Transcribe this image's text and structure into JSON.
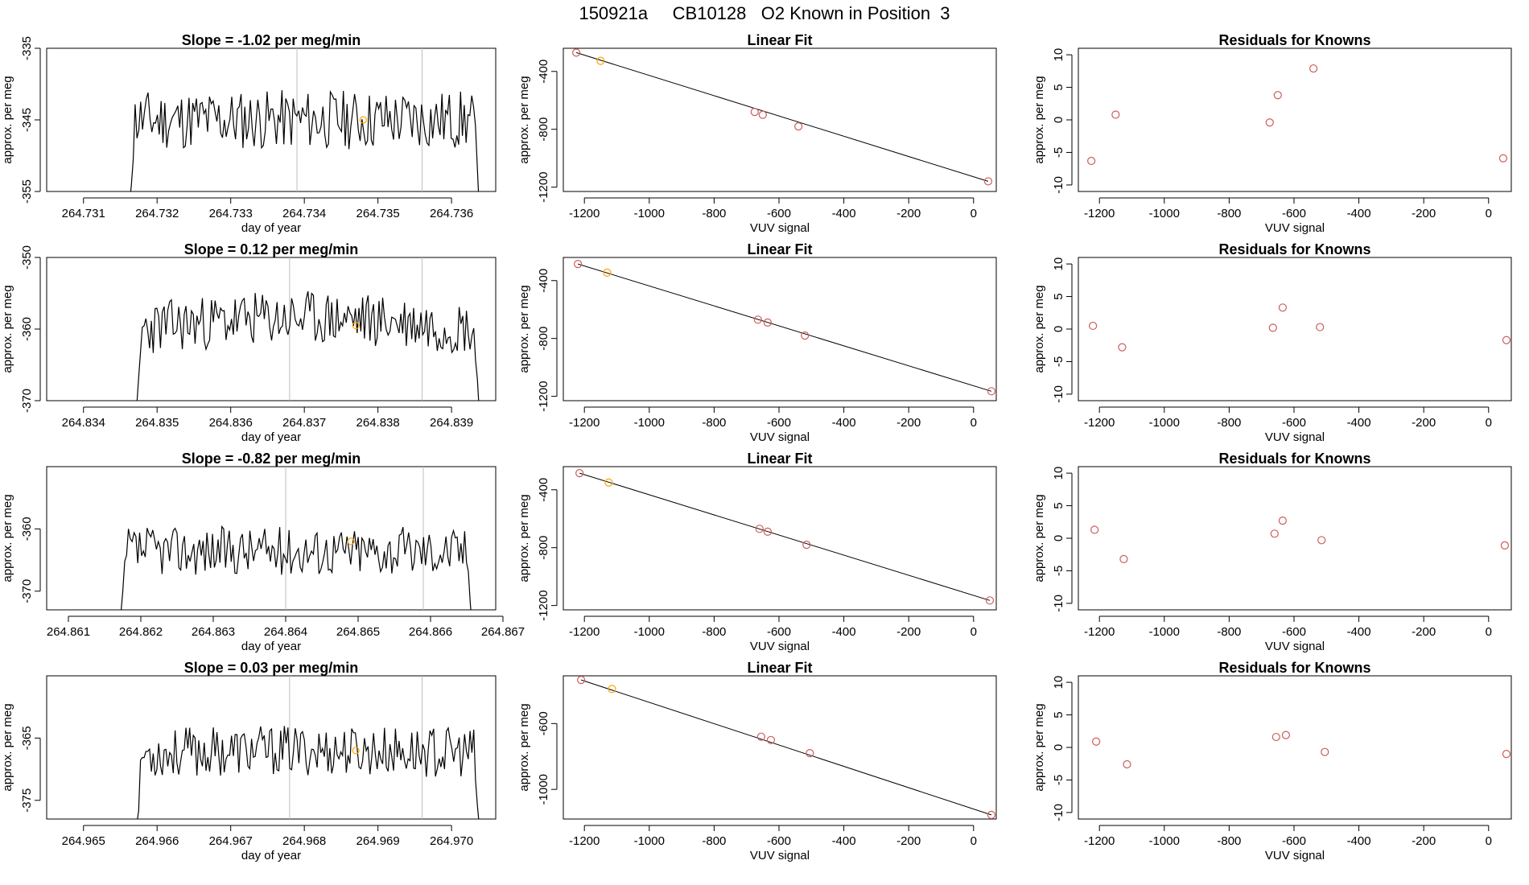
{
  "title": "150921a     CB10128   O2 Known in Position  3",
  "colors": {
    "line": "#000000",
    "point": "#cd5c5c",
    "highlight": "#ffa500",
    "vline": "#bebebe"
  },
  "chart_data": [
    {
      "type": "line",
      "row": 0,
      "title": "Slope =  -1.02  per meg/min",
      "xlabel": "day of year",
      "ylabel": "approx. per meg",
      "xlim": [
        264.7305,
        264.7366
      ],
      "ylim": [
        -355,
        -335
      ],
      "xticks": [
        264.731,
        264.732,
        264.733,
        264.734,
        264.735,
        264.736
      ],
      "xtick_labels": [
        "264.731",
        "264.732",
        "264.733",
        "264.734",
        "264.735",
        "264.736"
      ],
      "yticks": [
        -355,
        -345,
        -335
      ],
      "ytick_labels": [
        "-355",
        "-345",
        "-335"
      ],
      "trace": {
        "x_start": 264.7316,
        "x_end": 264.7364,
        "base": -345,
        "amp": 4.2,
        "n": 190,
        "seed": 11,
        "drift": 0
      },
      "vlines": [
        264.7339,
        264.7356
      ],
      "highlight_point": {
        "x": 264.7348,
        "y": -345
      }
    },
    {
      "type": "scatter",
      "row": 0,
      "title": "Linear Fit",
      "xlabel": "VUV signal",
      "ylabel": "approx. per meg",
      "xlim": [
        -1265,
        70
      ],
      "ylim": [
        -1230,
        -240
      ],
      "xticks": [
        -1200,
        -1000,
        -800,
        -600,
        -400,
        -200,
        0
      ],
      "xtick_labels": [
        "-1200",
        "-1000",
        "-800",
        "-600",
        "-400",
        "-200",
        "0"
      ],
      "yticks": [
        -1200,
        -800,
        -400
      ],
      "ytick_labels": [
        "-1200",
        "-800",
        "-400"
      ],
      "points": [
        {
          "x": -1225,
          "y": -270
        },
        {
          "x": -1150,
          "y": -327
        },
        {
          "x": -675,
          "y": -680
        },
        {
          "x": -650,
          "y": -700
        },
        {
          "x": -540,
          "y": -780
        },
        {
          "x": 45,
          "y": -1160
        }
      ],
      "highlight_index": 1,
      "fit_line": [
        [
          -1225,
          -270
        ],
        [
          45,
          -1160
        ]
      ]
    },
    {
      "type": "scatter",
      "row": 0,
      "title": "Residuals for Knowns",
      "xlabel": "VUV signal",
      "ylabel": "approx. per meg",
      "xlim": [
        -1265,
        70
      ],
      "ylim": [
        -11,
        11
      ],
      "xticks": [
        -1200,
        -1000,
        -800,
        -600,
        -400,
        -200,
        0
      ],
      "xtick_labels": [
        "-1200",
        "-1000",
        "-800",
        "-600",
        "-400",
        "-200",
        "0"
      ],
      "yticks": [
        -10,
        -5,
        0,
        5,
        10
      ],
      "ytick_labels": [
        "-10",
        "-5",
        "0",
        "5",
        "10"
      ],
      "points": [
        {
          "x": -1225,
          "y": -6.3
        },
        {
          "x": -1150,
          "y": 0.8
        },
        {
          "x": -675,
          "y": -0.4
        },
        {
          "x": -650,
          "y": 3.8
        },
        {
          "x": -540,
          "y": 7.9
        },
        {
          "x": 45,
          "y": -5.9
        }
      ]
    },
    {
      "type": "line",
      "row": 1,
      "title": "Slope =  0.12  per meg/min",
      "xlabel": "day of year",
      "ylabel": "approx. per meg",
      "xlim": [
        264.8335,
        264.8396
      ],
      "ylim": [
        -370,
        -350
      ],
      "xticks": [
        264.834,
        264.835,
        264.836,
        264.837,
        264.838,
        264.839
      ],
      "xtick_labels": [
        "264.834",
        "264.835",
        "264.836",
        "264.837",
        "264.838",
        "264.839"
      ],
      "yticks": [
        -370,
        -360,
        -350
      ],
      "ytick_labels": [
        "-370",
        "-360",
        "-350"
      ],
      "trace": {
        "x_start": 264.8347,
        "x_end": 264.8394,
        "base": -360,
        "amp": 3.8,
        "n": 190,
        "seed": 23,
        "drift": 1.5
      },
      "vlines": [
        264.8368,
        264.8386
      ],
      "highlight_point": {
        "x": 264.8377,
        "y": -359.5
      }
    },
    {
      "type": "scatter",
      "row": 1,
      "title": "Linear Fit",
      "xlabel": "VUV signal",
      "ylabel": "approx. per meg",
      "xlim": [
        -1265,
        70
      ],
      "ylim": [
        -1230,
        -240
      ],
      "xticks": [
        -1200,
        -1000,
        -800,
        -600,
        -400,
        -200,
        0
      ],
      "xtick_labels": [
        "-1200",
        "-1000",
        "-800",
        "-600",
        "-400",
        "-200",
        "0"
      ],
      "yticks": [
        -1200,
        -800,
        -400
      ],
      "ytick_labels": [
        "-1200",
        "-800",
        "-400"
      ],
      "points": [
        {
          "x": -1220,
          "y": -285
        },
        {
          "x": -1130,
          "y": -345
        },
        {
          "x": -665,
          "y": -670
        },
        {
          "x": -635,
          "y": -690
        },
        {
          "x": -520,
          "y": -780
        },
        {
          "x": 55,
          "y": -1165
        }
      ],
      "highlight_index": 1,
      "fit_line": [
        [
          -1220,
          -285
        ],
        [
          55,
          -1165
        ]
      ]
    },
    {
      "type": "scatter",
      "row": 1,
      "title": "Residuals for Knowns",
      "xlabel": "VUV signal",
      "ylabel": "approx. per meg",
      "xlim": [
        -1265,
        70
      ],
      "ylim": [
        -11,
        11
      ],
      "xticks": [
        -1200,
        -1000,
        -800,
        -600,
        -400,
        -200,
        0
      ],
      "xtick_labels": [
        "-1200",
        "-1000",
        "-800",
        "-600",
        "-400",
        "-200",
        "0"
      ],
      "yticks": [
        -10,
        -5,
        0,
        5,
        10
      ],
      "ytick_labels": [
        "-10",
        "-5",
        "0",
        "5",
        "10"
      ],
      "points": [
        {
          "x": -1220,
          "y": 0.5
        },
        {
          "x": -1130,
          "y": -2.8
        },
        {
          "x": -665,
          "y": 0.2
        },
        {
          "x": -635,
          "y": 3.3
        },
        {
          "x": -520,
          "y": 0.3
        },
        {
          "x": 55,
          "y": -1.7
        }
      ]
    },
    {
      "type": "line",
      "row": 2,
      "title": "Slope =  -0.82  per meg/min",
      "xlabel": "day of year",
      "ylabel": "approx. per meg",
      "xlim": [
        264.8607,
        264.8669
      ],
      "ylim": [
        -373,
        -350
      ],
      "xticks": [
        264.861,
        264.862,
        264.863,
        264.864,
        264.865,
        264.866,
        264.867
      ],
      "xtick_labels": [
        "264.861",
        "264.862",
        "264.863",
        "264.864",
        "264.865",
        "264.866",
        "264.867"
      ],
      "yticks": [
        -370,
        -360
      ],
      "ytick_labels": [
        "-370",
        "-360"
      ],
      "trace": {
        "x_start": 264.8617,
        "x_end": 264.8666,
        "base": -363.5,
        "amp": 3.9,
        "n": 190,
        "seed": 37,
        "drift": 0
      },
      "vlines": [
        264.864,
        264.8659
      ],
      "highlight_point": {
        "x": 264.8649,
        "y": -362
      }
    },
    {
      "type": "scatter",
      "row": 2,
      "title": "Linear Fit",
      "xlabel": "VUV signal",
      "ylabel": "approx. per meg",
      "xlim": [
        -1265,
        70
      ],
      "ylim": [
        -1230,
        -240
      ],
      "xticks": [
        -1200,
        -1000,
        -800,
        -600,
        -400,
        -200,
        0
      ],
      "xtick_labels": [
        "-1200",
        "-1000",
        "-800",
        "-600",
        "-400",
        "-200",
        "0"
      ],
      "yticks": [
        -1200,
        -800,
        -400
      ],
      "ytick_labels": [
        "-1200",
        "-800",
        "-400"
      ],
      "points": [
        {
          "x": -1215,
          "y": -285
        },
        {
          "x": -1125,
          "y": -350
        },
        {
          "x": -660,
          "y": -670
        },
        {
          "x": -635,
          "y": -690
        },
        {
          "x": -515,
          "y": -780
        },
        {
          "x": 50,
          "y": -1165
        }
      ],
      "highlight_index": 1,
      "fit_line": [
        [
          -1215,
          -285
        ],
        [
          50,
          -1165
        ]
      ]
    },
    {
      "type": "scatter",
      "row": 2,
      "title": "Residuals for Knowns",
      "xlabel": "VUV signal",
      "ylabel": "approx. per meg",
      "xlim": [
        -1265,
        70
      ],
      "ylim": [
        -11,
        11
      ],
      "xticks": [
        -1200,
        -1000,
        -800,
        -600,
        -400,
        -200,
        0
      ],
      "xtick_labels": [
        "-1200",
        "-1000",
        "-800",
        "-600",
        "-400",
        "-200",
        "0"
      ],
      "yticks": [
        -10,
        -5,
        0,
        5,
        10
      ],
      "ytick_labels": [
        "-10",
        "-5",
        "0",
        "5",
        "10"
      ],
      "points": [
        {
          "x": -1215,
          "y": 1.3
        },
        {
          "x": -1125,
          "y": -3.2
        },
        {
          "x": -660,
          "y": 0.7
        },
        {
          "x": -635,
          "y": 2.7
        },
        {
          "x": -515,
          "y": -0.3
        },
        {
          "x": 50,
          "y": -1.1
        }
      ]
    },
    {
      "type": "line",
      "row": 3,
      "title": "Slope =  0.03  per meg/min",
      "xlabel": "day of year",
      "ylabel": "approx. per meg",
      "xlim": [
        264.9645,
        264.9706
      ],
      "ylim": [
        -378,
        -355
      ],
      "xticks": [
        264.965,
        264.966,
        264.967,
        264.968,
        264.969,
        264.97
      ],
      "xtick_labels": [
        "264.965",
        "264.966",
        "264.967",
        "264.968",
        "264.969",
        "264.970"
      ],
      "yticks": [
        -375,
        -365
      ],
      "ytick_labels": [
        "-375",
        "-365"
      ],
      "trace": {
        "x_start": 264.9657,
        "x_end": 264.9704,
        "base": -367.5,
        "amp": 4.0,
        "n": 190,
        "seed": 53,
        "drift": 0.5
      },
      "vlines": [
        264.9678,
        264.9696
      ],
      "highlight_point": {
        "x": 264.9687,
        "y": -367
      }
    },
    {
      "type": "scatter",
      "row": 3,
      "title": "Linear Fit",
      "xlabel": "VUV signal",
      "ylabel": "approx. per meg",
      "xlim": [
        -1265,
        70
      ],
      "ylim": [
        -1180,
        -310
      ],
      "xticks": [
        -1200,
        -1000,
        -800,
        -600,
        -400,
        -200,
        0
      ],
      "xtick_labels": [
        "-1200",
        "-1000",
        "-800",
        "-600",
        "-400",
        "-200",
        "0"
      ],
      "yticks": [
        -1000,
        -600
      ],
      "ytick_labels": [
        "-1000",
        "-600"
      ],
      "points": [
        {
          "x": -1210,
          "y": -335
        },
        {
          "x": -1115,
          "y": -390
        },
        {
          "x": -655,
          "y": -680
        },
        {
          "x": -625,
          "y": -700
        },
        {
          "x": -505,
          "y": -780
        },
        {
          "x": 55,
          "y": -1155
        }
      ],
      "highlight_index": 1,
      "fit_line": [
        [
          -1210,
          -335
        ],
        [
          55,
          -1155
        ]
      ]
    },
    {
      "type": "scatter",
      "row": 3,
      "title": "Residuals for Knowns",
      "xlabel": "VUV signal",
      "ylabel": "approx. per meg",
      "xlim": [
        -1265,
        70
      ],
      "ylim": [
        -11,
        11
      ],
      "xticks": [
        -1200,
        -1000,
        -800,
        -600,
        -400,
        -200,
        0
      ],
      "xtick_labels": [
        "-1200",
        "-1000",
        "-800",
        "-600",
        "-400",
        "-200",
        "0"
      ],
      "yticks": [
        -10,
        -5,
        0,
        5,
        10
      ],
      "ytick_labels": [
        "-10",
        "-5",
        "0",
        "5",
        "10"
      ],
      "points": [
        {
          "x": -1210,
          "y": 0.9
        },
        {
          "x": -1115,
          "y": -2.6
        },
        {
          "x": -655,
          "y": 1.6
        },
        {
          "x": -625,
          "y": 1.9
        },
        {
          "x": -505,
          "y": -0.7
        },
        {
          "x": 55,
          "y": -1.0
        }
      ]
    }
  ]
}
